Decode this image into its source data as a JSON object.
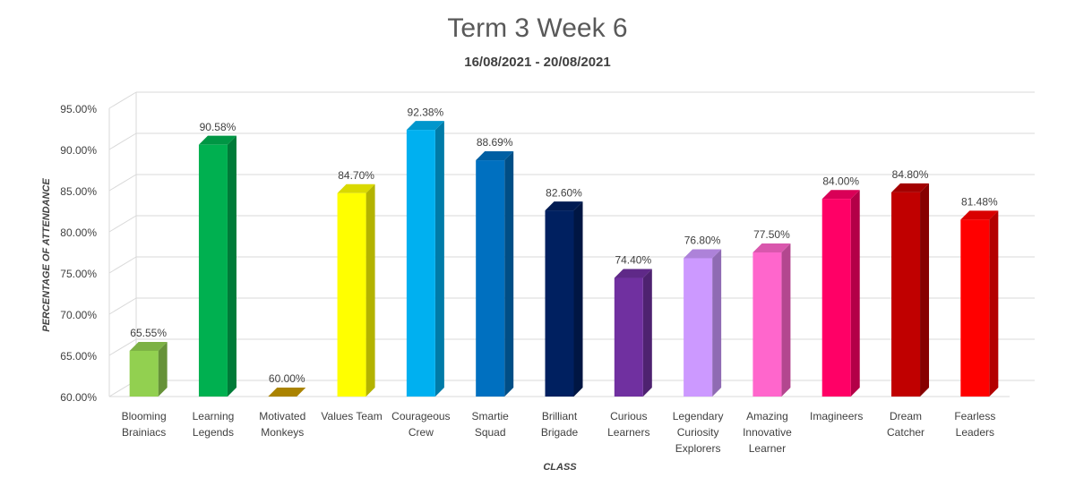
{
  "chart_data": {
    "type": "bar3d",
    "title": "Term 3 Week 6",
    "subtitle": "16/08/2021 - 20/08/2021",
    "x_label": "CLASS",
    "y_label": "PERCENTAGE OF ATTENDANCE",
    "categories": [
      "Blooming Brainiacs",
      "Learning Legends",
      "Motivated Monkeys",
      "Values Team",
      "Courageous Crew",
      "Smartie Squad",
      "Brilliant Brigade",
      "Curious Learners",
      "Legendary Curiosity Explorers",
      "Amazing Innovative Learner",
      "Imagineers",
      "Dream Catcher",
      "Fearless Leaders"
    ],
    "values": [
      65.55,
      90.58,
      60.0,
      84.7,
      92.38,
      88.69,
      82.6,
      74.4,
      76.8,
      77.5,
      84.0,
      84.8,
      81.48
    ],
    "value_labels": [
      "65.55%",
      "90.58%",
      "60.00%",
      "84.70%",
      "92.38%",
      "88.69%",
      "82.60%",
      "74.40%",
      "76.80%",
      "77.50%",
      "84.00%",
      "84.80%",
      "81.48%"
    ],
    "colors": [
      "#92d050",
      "#00b050",
      "#c89a00",
      "#ffff00",
      "#00b0f0",
      "#0070c0",
      "#002060",
      "#7030a0",
      "#cc99ff",
      "#ff66cc",
      "#ff0066",
      "#c00000",
      "#ff0000"
    ],
    "ylim": [
      60,
      95
    ],
    "yticks": [
      {
        "value": 60,
        "label": "60.00%"
      },
      {
        "value": 65,
        "label": "65.00%"
      },
      {
        "value": 70,
        "label": "70.00%"
      },
      {
        "value": 75,
        "label": "75.00%"
      },
      {
        "value": 80,
        "label": "80.00%"
      },
      {
        "value": 85,
        "label": "85.00%"
      },
      {
        "value": 90,
        "label": "90.00%"
      },
      {
        "value": 95,
        "label": "95.00%"
      }
    ],
    "grid": true
  }
}
